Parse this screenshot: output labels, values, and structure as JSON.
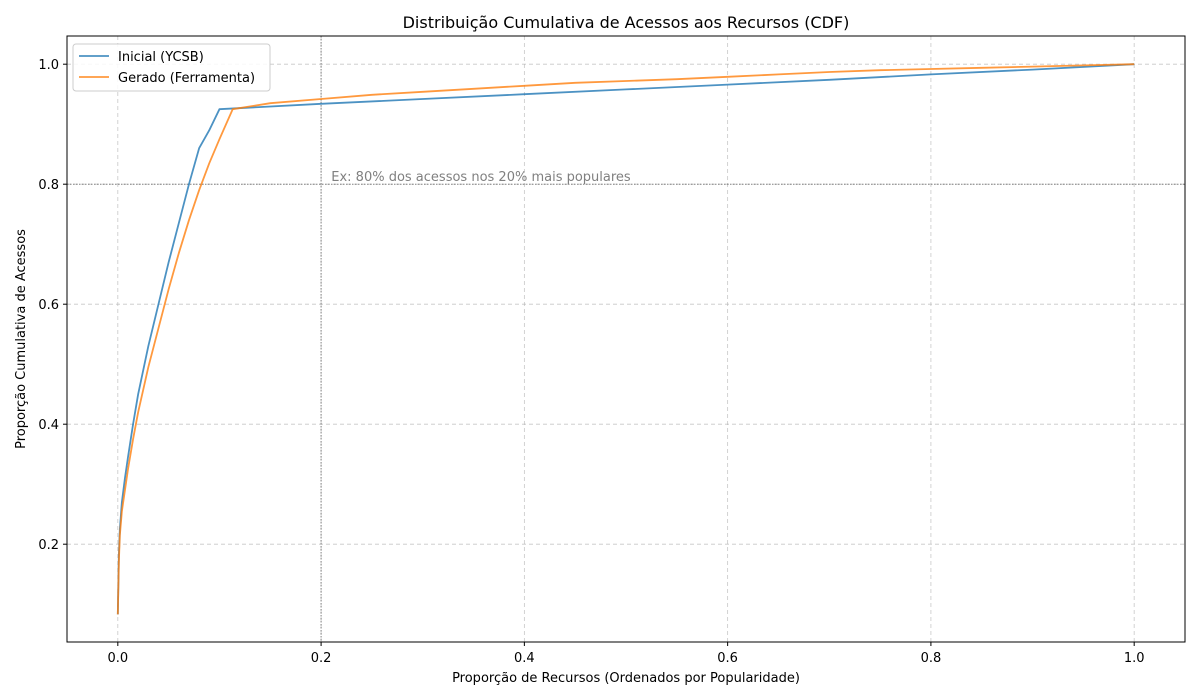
{
  "chart_data": {
    "type": "line",
    "title": "Distribuição Cumulativa de Acessos aos Recursos (CDF)",
    "xlabel": "Proporção de Recursos (Ordenados por Popularidade)",
    "ylabel": "Proporção Cumulativa de Acessos",
    "xlim": [
      -0.05,
      1.05
    ],
    "ylim": [
      0.037,
      1.047
    ],
    "xticks": [
      0.0,
      0.2,
      0.4,
      0.6,
      0.8,
      1.0
    ],
    "xtick_labels": [
      "0.0",
      "0.2",
      "0.4",
      "0.6",
      "0.8",
      "1.0"
    ],
    "yticks": [
      0.2,
      0.4,
      0.6,
      0.8,
      1.0
    ],
    "ytick_labels": [
      "0.2",
      "0.4",
      "0.6",
      "0.8",
      "1.0"
    ],
    "grid": true,
    "legend": "upper-left",
    "series": [
      {
        "name": "Inicial (YCSB)",
        "color": "#1f77b4",
        "x": [
          0,
          0.001,
          0.002,
          0.004,
          0.007,
          0.01,
          0.015,
          0.02,
          0.03,
          0.04,
          0.05,
          0.06,
          0.07,
          0.08,
          0.09,
          0.1,
          0.2,
          0.3,
          0.4,
          0.5,
          0.6,
          0.7,
          0.8,
          0.9,
          1.0
        ],
        "y": [
          0.083,
          0.18,
          0.225,
          0.27,
          0.31,
          0.345,
          0.4,
          0.45,
          0.53,
          0.6,
          0.67,
          0.735,
          0.8,
          0.86,
          0.89,
          0.925,
          0.934,
          0.942,
          0.95,
          0.958,
          0.966,
          0.974,
          0.983,
          0.991,
          1.0
        ]
      },
      {
        "name": "Gerado (Ferramenta)",
        "color": "#ff7f0e",
        "x": [
          0,
          0.001,
          0.002,
          0.004,
          0.007,
          0.01,
          0.015,
          0.02,
          0.03,
          0.04,
          0.05,
          0.06,
          0.07,
          0.08,
          0.09,
          0.1,
          0.113,
          0.15,
          0.2,
          0.25,
          0.3,
          0.35,
          0.4,
          0.45,
          0.5,
          0.55,
          0.6,
          0.65,
          0.7,
          0.75,
          0.8,
          0.85,
          0.9,
          0.95,
          1.0
        ],
        "y": [
          0.083,
          0.17,
          0.215,
          0.255,
          0.29,
          0.325,
          0.375,
          0.42,
          0.495,
          0.56,
          0.625,
          0.685,
          0.74,
          0.79,
          0.835,
          0.875,
          0.925,
          0.935,
          0.942,
          0.949,
          0.954,
          0.959,
          0.964,
          0.969,
          0.972,
          0.975,
          0.979,
          0.983,
          0.987,
          0.99,
          0.992,
          0.994,
          0.996,
          0.998,
          1.0
        ]
      }
    ],
    "reference_lines": {
      "x": 0.2,
      "y": 0.8
    },
    "annotation": {
      "text": "Ex: 80% dos acessos nos 20% mais populares",
      "x": 0.21,
      "y": 0.81
    }
  }
}
